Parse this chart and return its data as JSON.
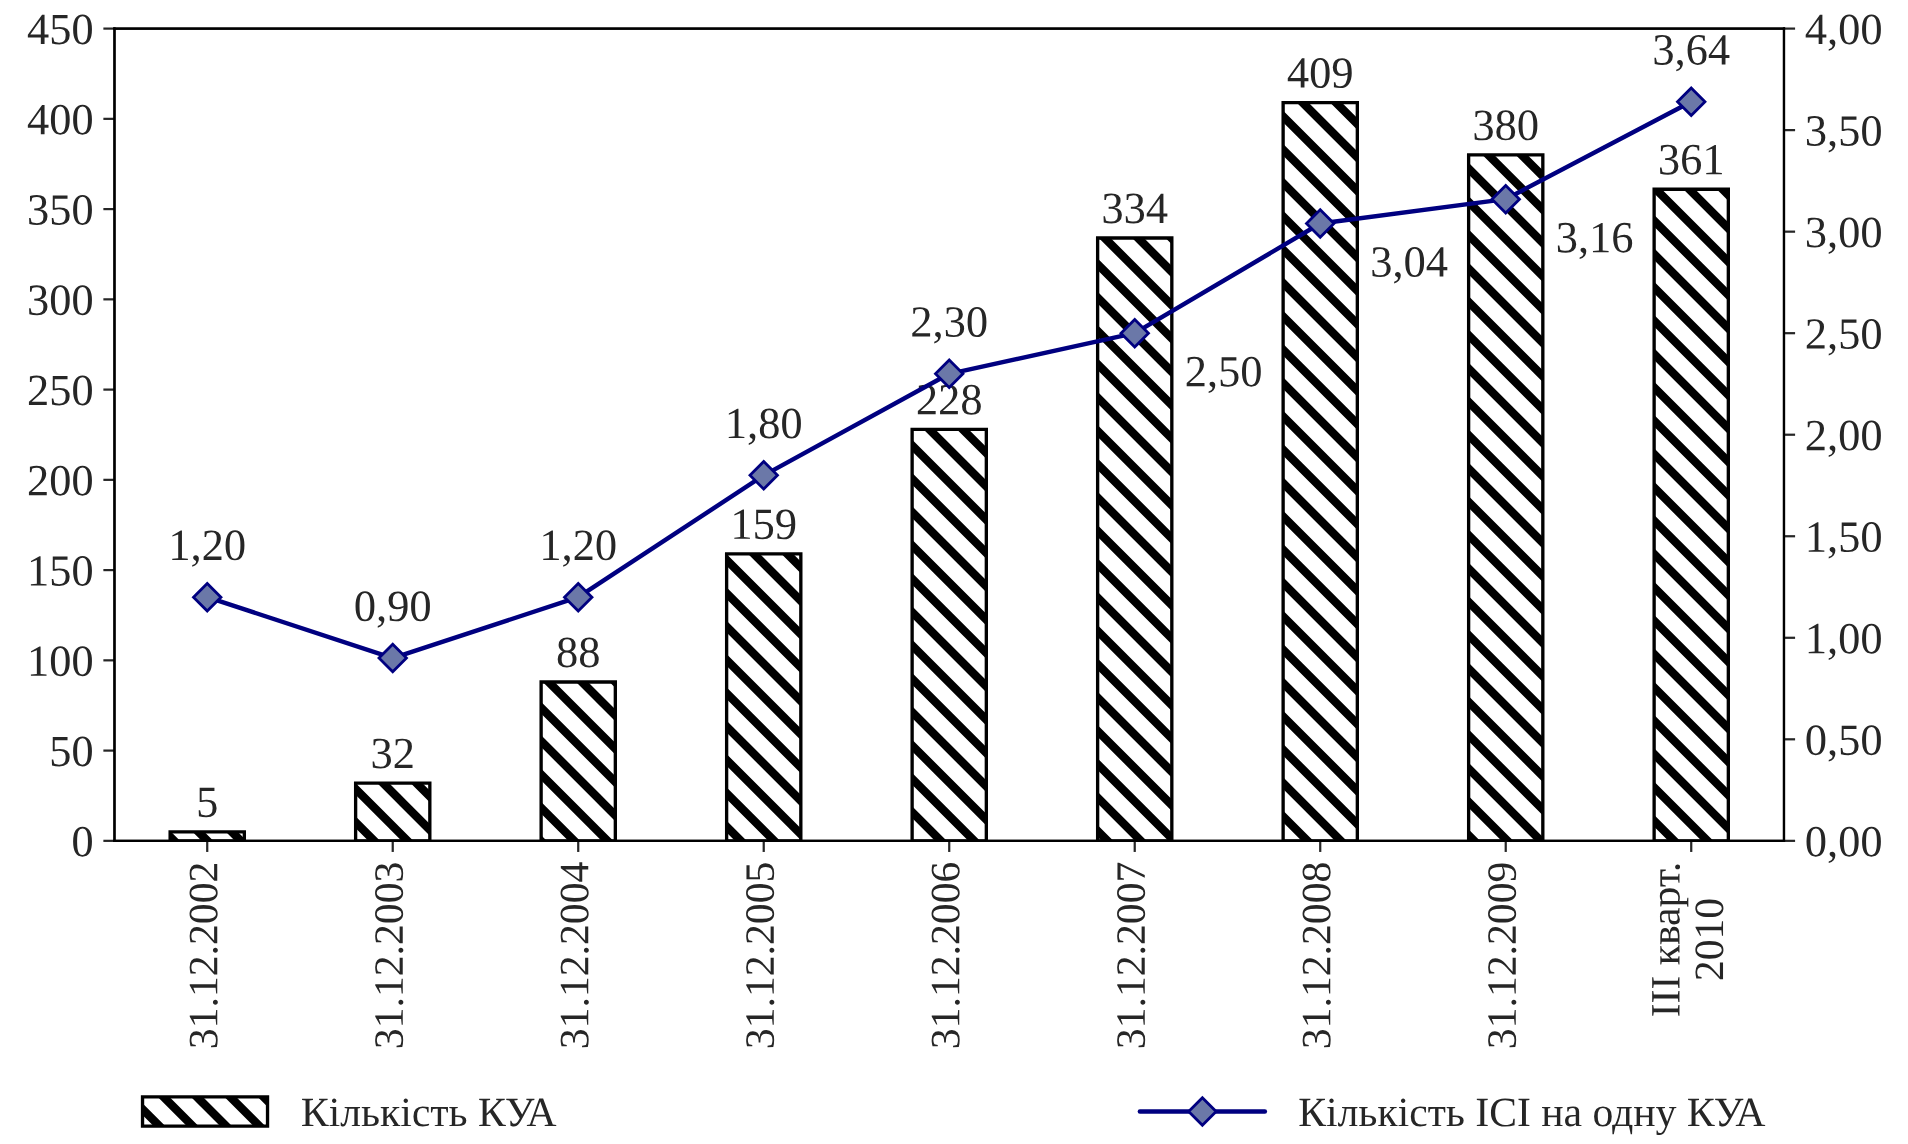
{
  "chart_data": {
    "type": "bar",
    "categories": [
      "31.12.2002",
      "31.12.2003",
      "31.12.2004",
      "31.12.2005",
      "31.12.2006",
      "31.12.2007",
      "31.12.2008",
      "31.12.2009",
      "III кварт.\n2010"
    ],
    "series": [
      {
        "name": "Кількість КУА",
        "color": "#000000",
        "values": [
          5,
          32,
          88,
          159,
          228,
          334,
          409,
          380,
          361
        ],
        "value_labels": [
          "5",
          "32",
          "88",
          "159",
          "228",
          "334",
          "409",
          "380",
          "361"
        ]
      },
      {
        "name": "Кількість ІСІ на одну КУА",
        "type": "line",
        "axis": "y2",
        "color": "#000080",
        "marker": "diamond",
        "values": [
          1.2,
          0.9,
          1.2,
          1.8,
          2.3,
          2.5,
          3.04,
          3.16,
          3.64
        ],
        "value_labels": [
          "1,20",
          "0,90",
          "1,20",
          "1,80",
          "2,30",
          "2,50",
          "3,04",
          "3,16",
          "3,64"
        ]
      }
    ],
    "ylim": [
      0,
      450
    ],
    "yticks": [
      0,
      50,
      100,
      150,
      200,
      250,
      300,
      350,
      400,
      450
    ],
    "y2lim": [
      0,
      4
    ],
    "y2ticks": [
      {
        "value": 0,
        "label": "0,00"
      },
      {
        "value": 0.5,
        "label": "0,50"
      },
      {
        "value": 1,
        "label": "1,00"
      },
      {
        "value": 1.5,
        "label": "1,50"
      },
      {
        "value": 2,
        "label": "2,00"
      },
      {
        "value": 2.5,
        "label": "2,50"
      },
      {
        "value": 3,
        "label": "3,00"
      },
      {
        "value": 3.5,
        "label": "3,50"
      },
      {
        "value": 4,
        "label": "4,00"
      }
    ],
    "grid": false,
    "legend": "bottom"
  }
}
